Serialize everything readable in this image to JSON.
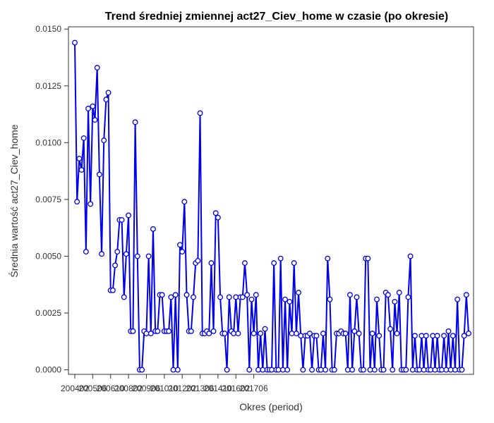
{
  "chart_data": {
    "type": "line",
    "title": "Trend średniej zmiennej act27_Ciev_home w czasie (po okresie)",
    "xlabel": "Okres (period)",
    "ylabel": "Średnia wartość act27_Ciev_home",
    "x_ticks": [
      "200402",
      "200506",
      "200610",
      "200802",
      "200906",
      "201010",
      "201202",
      "201306",
      "201410",
      "201602",
      "201706"
    ],
    "y_ticks": [
      "0.0000",
      "0.0025",
      "0.0050",
      "0.0075",
      "0.0100",
      "0.0125",
      "0.0150"
    ],
    "x_start": "200402",
    "ylim": [
      -0.0002,
      0.0151
    ],
    "grid": false,
    "legend": "none",
    "line_color": "#0000ee",
    "series": [
      {
        "values": [
          0.0144,
          0.0074,
          0.0093,
          0.0088,
          0.0102,
          0.0052,
          0.0115,
          0.0073,
          0.0116,
          0.011,
          0.0133,
          0.0086,
          0.0051,
          0.0101,
          0.0119,
          0.0122,
          0.0035,
          0.0035,
          0.0046,
          0.0052,
          0.0066,
          0.0066,
          0.0032,
          0.0051,
          0.0068,
          0.0017,
          0.0017,
          0.0109,
          0.005,
          0.0,
          0.0,
          0.0017,
          0.0016,
          0.005,
          0.0016,
          0.0062,
          0.0017,
          0.0017,
          0.0033,
          0.0033,
          0.0017,
          0.0017,
          0.0017,
          0.0032,
          0.0,
          0.0033,
          0.0,
          0.0055,
          0.0052,
          0.0074,
          0.0033,
          0.0017,
          0.0017,
          0.0032,
          0.0047,
          0.0048,
          0.0113,
          0.0016,
          0.0016,
          0.0017,
          0.0016,
          0.0047,
          0.0017,
          0.0069,
          0.0067,
          0.0032,
          0.0016,
          0.0016,
          0.0,
          0.0032,
          0.0017,
          0.0016,
          0.0032,
          0.0016,
          0.0032,
          0.0032,
          0.0047,
          0.0033,
          0.0,
          0.0031,
          0.0016,
          0.0033,
          0.0,
          0.0016,
          0.0,
          0.0018,
          0.0,
          0.0,
          0.0,
          0.0047,
          0.0,
          0.0,
          0.0049,
          0.0,
          0.0031,
          0.0,
          0.003,
          0.0016,
          0.0047,
          0.0016,
          0.0034,
          0.0015,
          0.0,
          0.0015,
          0.0015,
          0.0016,
          0.0,
          0.0015,
          0.0015,
          0.0,
          0.0,
          0.0016,
          0.0,
          0.0049,
          0.0031,
          0.0,
          0.0,
          0.0016,
          0.0016,
          0.0017,
          0.0016,
          0.0016,
          0.0,
          0.0033,
          0.0,
          0.0017,
          0.0032,
          0.0016,
          0.0,
          0.0,
          0.0049,
          0.0049,
          0.0,
          0.0016,
          0.0,
          0.0031,
          0.0015,
          0.0,
          0.0,
          0.0034,
          0.0033,
          0.0018,
          0.0,
          0.003,
          0.0016,
          0.0034,
          0.0,
          0.0,
          0.0,
          0.0032,
          0.005,
          0.0,
          0.0015,
          0.0,
          0.0,
          0.0015,
          0.0,
          0.0015,
          0.0,
          0.0,
          0.0015,
          0.0,
          0.0015,
          0.0,
          0.0,
          0.0015,
          0.0,
          0.0017,
          0.0,
          0.0015,
          0.0,
          0.0031,
          0.0,
          0.0,
          0.0015,
          0.0033,
          0.0016
        ]
      }
    ]
  }
}
